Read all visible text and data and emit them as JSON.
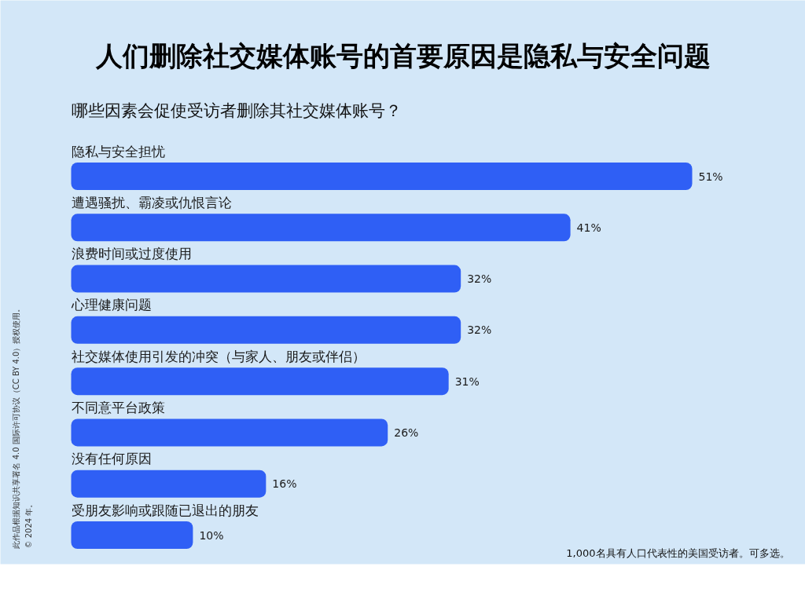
{
  "chart_data": {
    "type": "bar",
    "orientation": "horizontal",
    "title": "人们删除社交媒体账号的首要原因是隐私与安全问题",
    "subtitle": "哪些因素会促使受访者删除其社交媒体账号？",
    "categories": [
      "隐私与安全担忧",
      "遭遇骚扰、霸凌或仇恨言论",
      "浪费时间或过度使用",
      "心理健康问题",
      "社交媒体使用引发的冲突（与家人、朋友或伴侣）",
      "不同意平台政策",
      "没有任何原因",
      "受朋友影响或跟随已退出的朋友"
    ],
    "values": [
      51,
      41,
      32,
      32,
      31,
      26,
      16,
      10
    ],
    "color": "#2f5ff5",
    "value_labels": [
      "51%",
      "41%",
      "32%",
      "32%",
      "31%",
      "26%",
      "16%",
      "10%"
    ],
    "annotations": [
      "1,000名具有人口代表性的美国受访者。可多选。",
      "此作品根据知识共享署名 4.0 国际许可协议（CC BY 4.0）授权使用。",
      "© 2024 年。"
    ]
  }
}
